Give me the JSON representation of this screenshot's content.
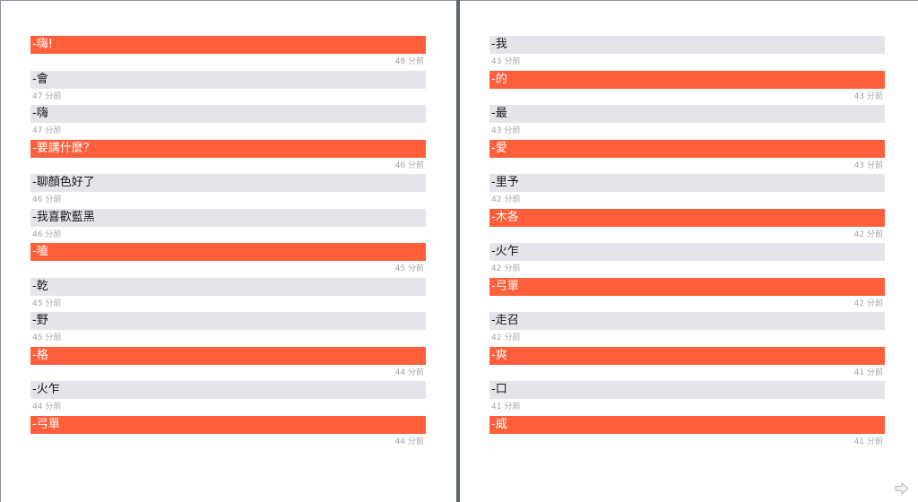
{
  "left_page": {
    "messages": [
      {
        "side": "mine",
        "text": "-嗨!",
        "time": "48 分前"
      },
      {
        "side": "theirs",
        "text": "-會",
        "time": "47 分前"
      },
      {
        "side": "theirs",
        "text": "-嗨",
        "time": "47 分前"
      },
      {
        "side": "mine",
        "text": "-要講什麼？",
        "time": "46 分前"
      },
      {
        "side": "theirs",
        "text": "-聊顏色好了",
        "time": "46 分前"
      },
      {
        "side": "theirs",
        "text": "-我喜歡藍黑",
        "time": "46 分前"
      },
      {
        "side": "mine",
        "text": "-嗑",
        "time": "45 分前"
      },
      {
        "side": "theirs",
        "text": "-乾",
        "time": "45 分前"
      },
      {
        "side": "theirs",
        "text": "-野",
        "time": "45 分前"
      },
      {
        "side": "mine",
        "text": "-格",
        "time": "44 分前"
      },
      {
        "side": "theirs",
        "text": "-火乍",
        "time": "44 分前"
      },
      {
        "side": "mine",
        "text": "-弓單",
        "time": "44 分前"
      }
    ]
  },
  "right_page": {
    "messages": [
      {
        "side": "theirs",
        "text": "-我",
        "time": "43 分前"
      },
      {
        "side": "mine",
        "text": "-的",
        "time": "43 分前"
      },
      {
        "side": "theirs",
        "text": "-最",
        "time": "43 分前"
      },
      {
        "side": "mine",
        "text": "-愛",
        "time": "43 分前"
      },
      {
        "side": "theirs",
        "text": "-里予",
        "time": "42 分前"
      },
      {
        "side": "mine",
        "text": "-木各",
        "time": "42 分前"
      },
      {
        "side": "theirs",
        "text": "-火乍",
        "time": "42 分前"
      },
      {
        "side": "mine",
        "text": "-弓單",
        "time": "42 分前"
      },
      {
        "side": "theirs",
        "text": "-走召",
        "time": "42 分前"
      },
      {
        "side": "mine",
        "text": "-爽",
        "time": "41 分前"
      },
      {
        "side": "theirs",
        "text": "-口",
        "time": "41 分前"
      },
      {
        "side": "mine",
        "text": "-威",
        "time": "41 分前"
      }
    ]
  },
  "controls": {
    "next_icon": "next-page-arrow-icon"
  },
  "colors": {
    "mine_bubble": "#ff5e3a",
    "theirs_bubble": "#e5e4ea",
    "timestamp": "#a4a4a4",
    "divider": "#5b6470"
  }
}
